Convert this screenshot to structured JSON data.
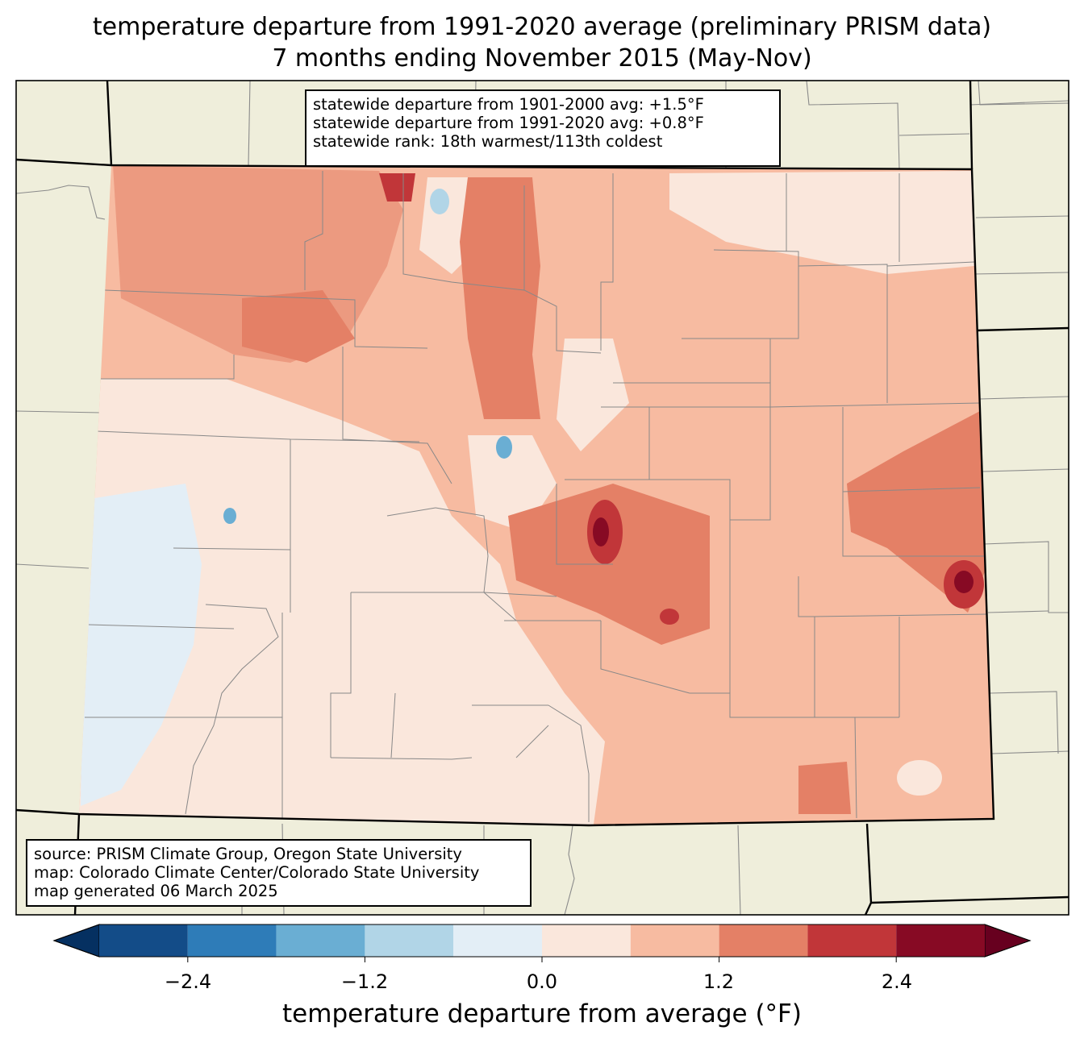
{
  "title": {
    "line1": "temperature departure from 1991-2020 average (preliminary PRISM data)",
    "line2": "7 months ending November 2015 (May-Nov)"
  },
  "stats": {
    "line1": "statewide departure from 1901-2000 avg: +1.5°F",
    "line2": "statewide departure from 1991-2020 avg: +0.8°F",
    "line3": "statewide rank: 18th warmest/113th coldest"
  },
  "source": {
    "line1": "source: PRISM Climate Group, Oregon State University",
    "line2": "map: Colorado Climate Center/Colorado State University",
    "line3": "map generated 06 March 2025"
  },
  "colorbar": {
    "label": "temperature departure from average (°F)",
    "ticks": [
      "−2.4",
      "−1.2",
      "0.0",
      "1.2",
      "2.4"
    ],
    "bounds": [
      -3.0,
      -2.4,
      -1.8,
      -1.2,
      -0.6,
      0.0,
      0.6,
      1.2,
      1.8,
      2.4,
      3.0
    ],
    "colors": [
      "#134c88",
      "#2e7cb8",
      "#6aaed3",
      "#b1d5e7",
      "#e3eef6",
      "#fae7dc",
      "#f7bba1",
      "#e48066",
      "#c13639",
      "#870a24"
    ],
    "under_color": "#053061",
    "over_color": "#67001f"
  },
  "map": {
    "background_color": "#efeedb",
    "region": "Colorado",
    "dominant_category_color": "#f7bba1"
  }
}
